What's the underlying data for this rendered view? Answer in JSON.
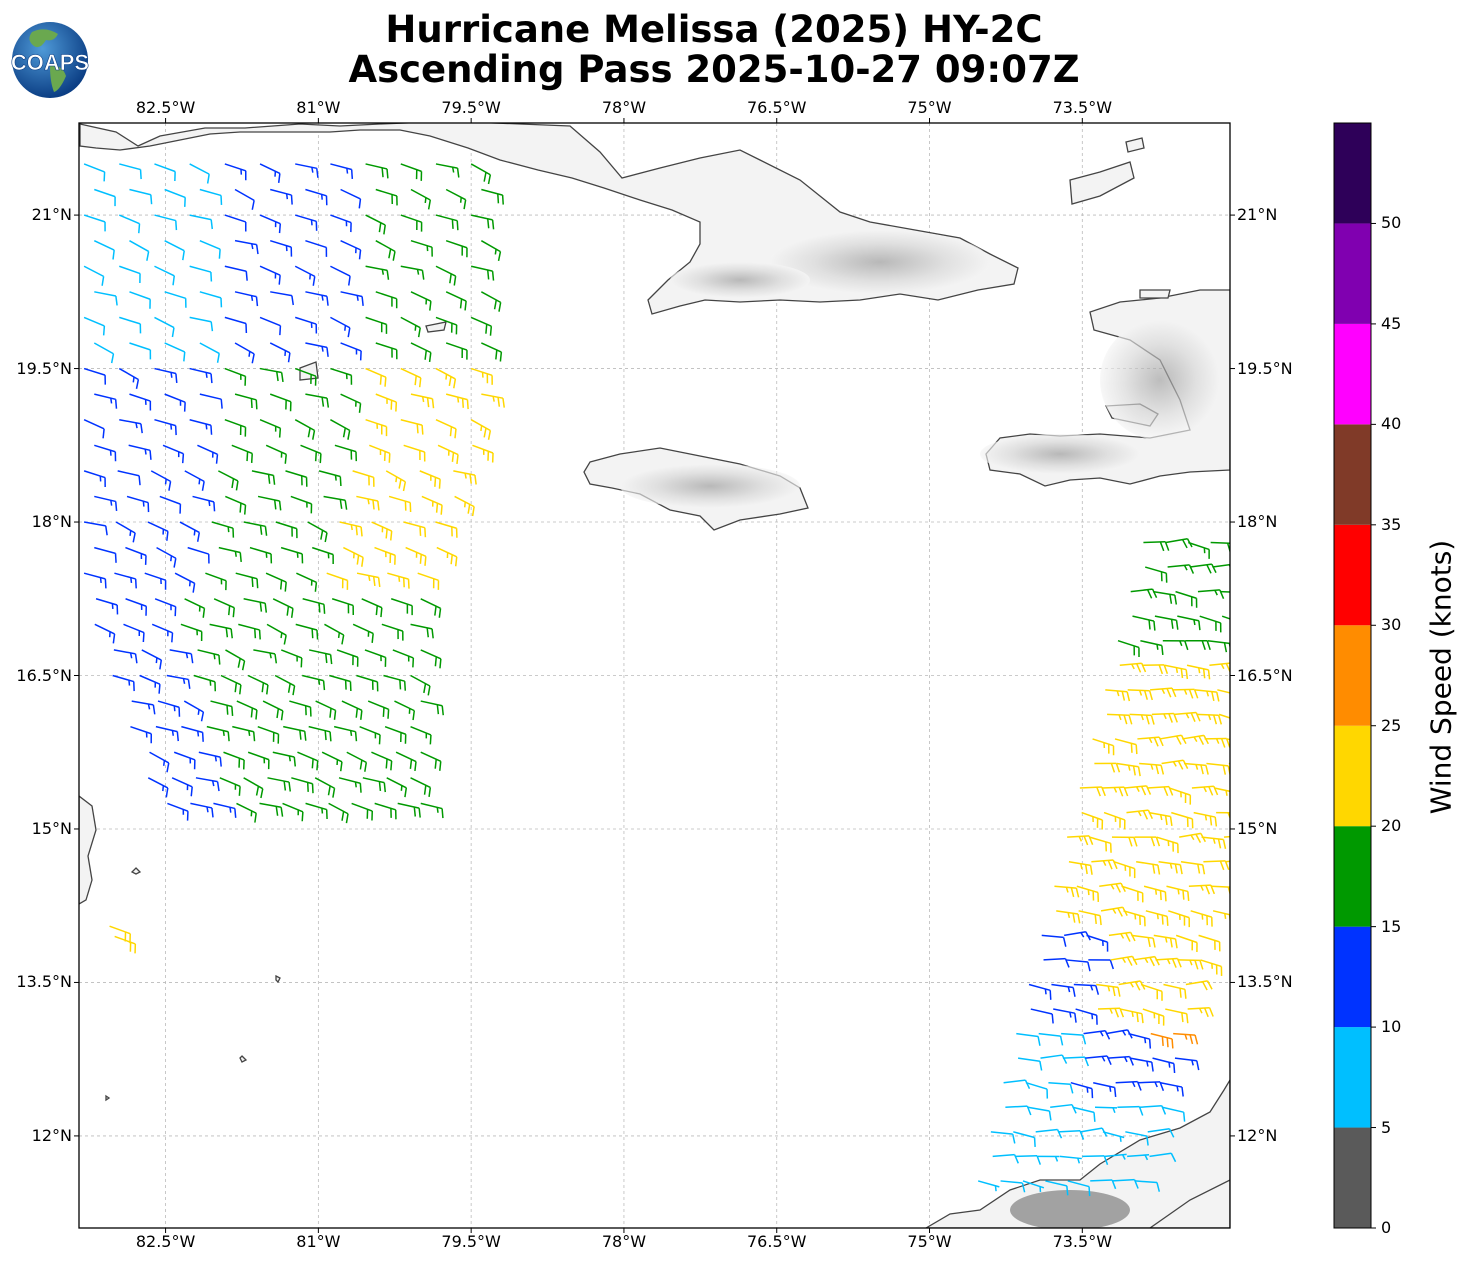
{
  "title": {
    "line1": "Hurricane Melissa (2025) HY-2C",
    "line2": "Ascending Pass 2025-10-27 09:07Z"
  },
  "logo": {
    "text": "COAPS",
    "icon": "globe-logo"
  },
  "map": {
    "lon_range": [
      -83.35,
      -72.05
    ],
    "lat_range": [
      11.1,
      21.9
    ],
    "lon_ticks": [
      {
        "value": -82.5,
        "label": "82.5°W"
      },
      {
        "value": -81.0,
        "label": "81°W"
      },
      {
        "value": -79.5,
        "label": "79.5°W"
      },
      {
        "value": -78.0,
        "label": "78°W"
      },
      {
        "value": -76.5,
        "label": "76.5°W"
      },
      {
        "value": -75.0,
        "label": "75°W"
      },
      {
        "value": -73.5,
        "label": "73.5°W"
      }
    ],
    "lat_ticks": [
      {
        "value": 21.0,
        "label": "21°N"
      },
      {
        "value": 19.5,
        "label": "19.5°N"
      },
      {
        "value": 18.0,
        "label": "18°N"
      },
      {
        "value": 16.5,
        "label": "16.5°N"
      },
      {
        "value": 15.0,
        "label": "15°N"
      },
      {
        "value": 13.5,
        "label": "13.5°N"
      },
      {
        "value": 12.0,
        "label": "12°N"
      }
    ],
    "gridlines": true,
    "coast_color": "#444444",
    "terrain": [
      "Cuba",
      "Jamaica",
      "Hispaniola",
      "South America coast"
    ]
  },
  "colorbar": {
    "label": "Wind Speed (knots)",
    "bins": [
      {
        "from": 0,
        "to": 5,
        "color": "#5a5a5a"
      },
      {
        "from": 5,
        "to": 10,
        "color": "#00bfff"
      },
      {
        "from": 10,
        "to": 15,
        "color": "#0033ff"
      },
      {
        "from": 15,
        "to": 20,
        "color": "#009900"
      },
      {
        "from": 20,
        "to": 25,
        "color": "#ffd700"
      },
      {
        "from": 25,
        "to": 30,
        "color": "#ff8c00"
      },
      {
        "from": 30,
        "to": 35,
        "color": "#ff0000"
      },
      {
        "from": 35,
        "to": 40,
        "color": "#803a28"
      },
      {
        "from": 40,
        "to": 45,
        "color": "#ff00ff"
      },
      {
        "from": 45,
        "to": 50,
        "color": "#8000b0"
      },
      {
        "from": 50,
        "to": 55,
        "color": "#2e0059"
      }
    ],
    "ticks": [
      "0",
      "5",
      "10",
      "15",
      "20",
      "25",
      "30",
      "35",
      "40",
      "45",
      "50"
    ]
  },
  "chart_data": {
    "type": "scatter",
    "description_units": "lon/lat degrees, wind speed knots",
    "wind_barb_swaths": [
      {
        "name": "west swath",
        "lon_range": [
          -83.3,
          -79.6
        ],
        "lat_range": [
          15.2,
          21.7
        ],
        "direction_from_deg": 100,
        "speed_range_kt": [
          8,
          24
        ]
      },
      {
        "name": "southwest fragment",
        "lon_range": [
          -83.1,
          -83.0
        ],
        "lat_range": [
          13.9,
          14.1
        ],
        "direction_from_deg": 110,
        "speed_range_kt": [
          20,
          24
        ]
      },
      {
        "name": "east swath",
        "lon_range": [
          -74.5,
          -72.05
        ],
        "lat_range": [
          11.3,
          17.9
        ],
        "direction_from_deg": 90,
        "speed_range_kt": [
          5,
          28
        ]
      }
    ]
  }
}
